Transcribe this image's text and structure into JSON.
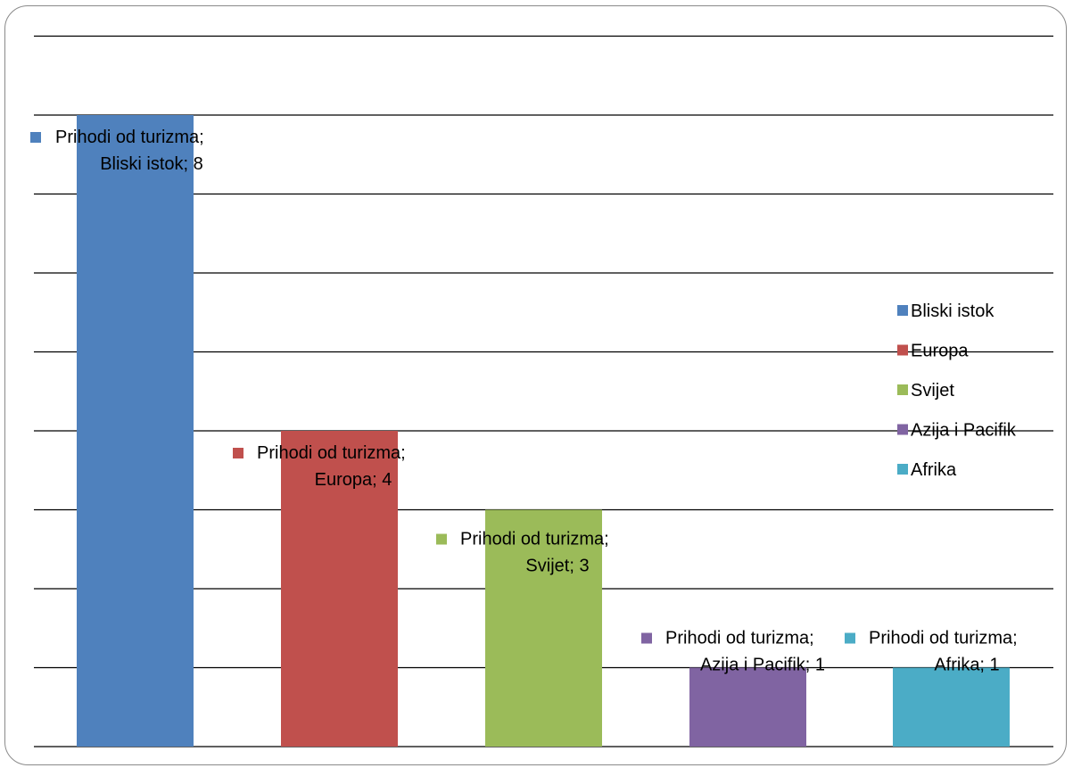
{
  "chart_data": {
    "type": "bar",
    "title": "",
    "xlabel": "",
    "ylabel": "",
    "ylim": [
      0,
      8
    ],
    "grid": true,
    "legend_position": "right",
    "categories": [
      "Bliski istok",
      "Europa",
      "Svijet",
      "Azija i Pacifik",
      "Afrika"
    ],
    "series": [
      {
        "name": "Prihodi od turizma",
        "values": [
          8,
          4,
          3,
          1,
          1
        ]
      }
    ],
    "colors": [
      "#4F81BD",
      "#C0504D",
      "#9BBB59",
      "#8064A2",
      "#4BACC6"
    ],
    "data_labels": [
      {
        "line1": "Prihodi od turizma;",
        "line2": "Bliski istok; 8"
      },
      {
        "line1": "Prihodi od turizma;",
        "line2": "Europa; 4"
      },
      {
        "line1": "Prihodi od turizma;",
        "line2": "Svijet; 3"
      },
      {
        "line1": "Prihodi od turizma;",
        "line2": "Azija i Pacifik; 1"
      },
      {
        "line1": "Prihodi od turizma;",
        "line2": "Afrika; 1"
      }
    ],
    "legend": [
      "Bliski istok",
      "Europa",
      "Svijet",
      "Azija i Pacifik",
      "Afrika"
    ]
  }
}
